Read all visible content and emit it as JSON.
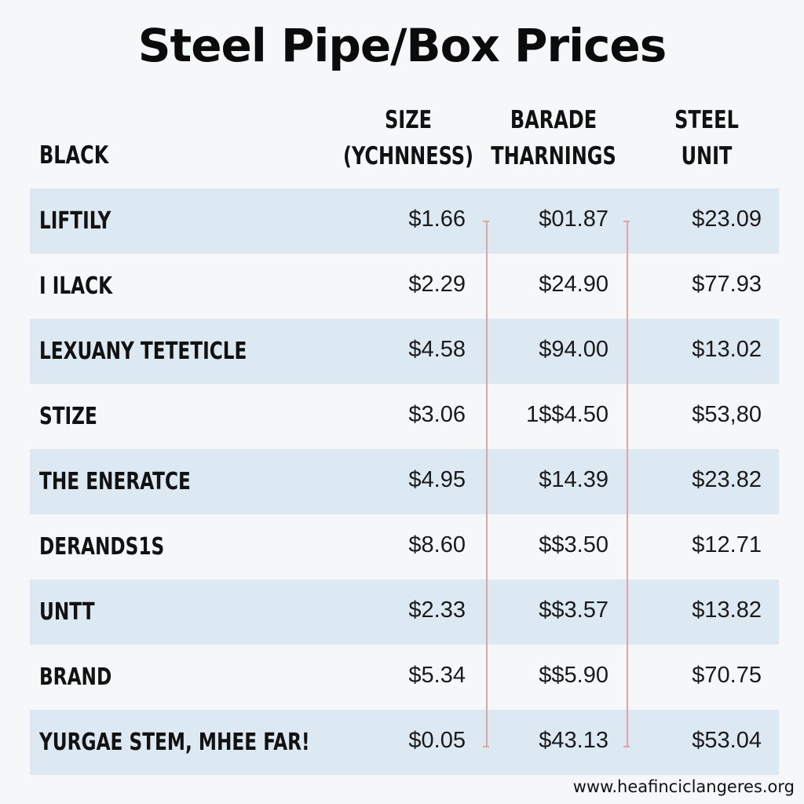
{
  "title": "Steel Pipe/Box Prices",
  "header": {
    "row_label": "BLACK",
    "columns": [
      {
        "line1": "SIZE",
        "line2": "(YCHNNESS)"
      },
      {
        "line1": "BARADE",
        "line2": "THARNINGS"
      },
      {
        "line1": "STEEL",
        "line2": "UNIT"
      }
    ]
  },
  "rows": [
    {
      "label": "LIFTILY",
      "values": [
        "$1.66",
        "$01.87",
        "$23.09"
      ]
    },
    {
      "label": "I ILACK",
      "values": [
        "$2.29",
        "$24.90",
        "$77.93"
      ]
    },
    {
      "label": "LEXUANY TETETICLE",
      "values": [
        "$4.58",
        "$94.00",
        "$13.02"
      ]
    },
    {
      "label": "STIZE",
      "values": [
        "$3.06",
        "1$$4.50",
        "$53,80"
      ]
    },
    {
      "label": "THE ENERATCE",
      "values": [
        "$4.95",
        "$14.39",
        "$23.82"
      ]
    },
    {
      "label": "DERANDS1S",
      "values": [
        "$8.60",
        "$$3.50",
        "$12.71"
      ]
    },
    {
      "label": "UNTT",
      "values": [
        "$2.33",
        "$$3.57",
        "$13.82"
      ]
    },
    {
      "label": "BRAND",
      "values": [
        "$5.34",
        "$$5.90",
        "$70.75"
      ]
    },
    {
      "label": "YURGAE STEM, MHEE FAR!",
      "values": [
        "$0.05",
        "$43.13",
        "$53.04"
      ]
    }
  ],
  "website": "www.heafinciclangeres.org",
  "colors": {
    "row_shade": "#dce9f3",
    "background": "#f6f7f8",
    "guide_line": "#e3a3a3"
  }
}
